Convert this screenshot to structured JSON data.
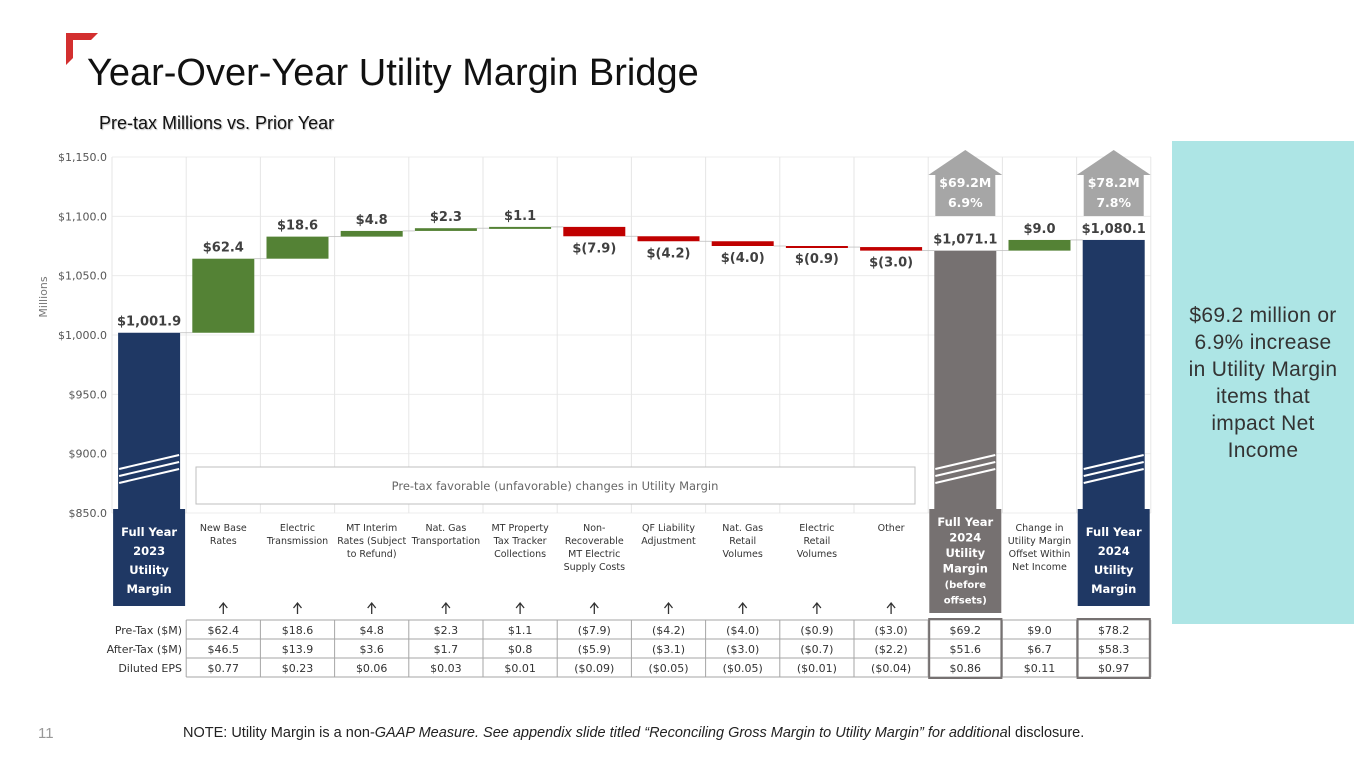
{
  "slide": {
    "title": "Year-Over-Year Utility Margin Bridge",
    "subtitle": "Pre-tax Millions vs. Prior Year",
    "page_number": "11",
    "note_prefix": "NOTE: Utility Margin is a non-",
    "note_italic": "GAAP Measure. See appendix slide titled “Reconciling Gross Margin to Utility Margin” for additiona",
    "note_suffix": "l disclosure.",
    "callout": "$69.2 million or 6.9% increase in Utility Margin items that impact Net Income",
    "accent_color": "#d32f2f"
  },
  "chart_data": {
    "type": "bar",
    "subtype": "waterfall",
    "ylabel": "Millions",
    "ylim": [
      850,
      1150
    ],
    "yticks": [
      "$850.0",
      "$900.0",
      "$950.0",
      "$1,000.0",
      "$1,050.0",
      "$1,100.0",
      "$1,150.0"
    ],
    "ytick_values": [
      850,
      900,
      950,
      1000,
      1050,
      1100,
      1150
    ],
    "band_label": "Pre-tax favorable (unfavorable) changes in Utility Margin",
    "colors": {
      "total": "#1f3864",
      "subtotal": "#767171",
      "increase": "#548235",
      "decrease": "#c00000",
      "badge": "#a6a6a6",
      "callout": "#ade5e5"
    },
    "bars": [
      {
        "category": "Full Year 2023 Utility Margin",
        "kind": "total",
        "start": 0,
        "end": 1001.9,
        "label": "$1,001.9"
      },
      {
        "category": "New Base Rates",
        "kind": "increase",
        "start": 1001.9,
        "end": 1064.3,
        "label": "$62.4"
      },
      {
        "category": "Electric Transmission",
        "kind": "increase",
        "start": 1064.3,
        "end": 1082.9,
        "label": "$18.6"
      },
      {
        "category": "MT Interim Rates (Subject to Refund)",
        "kind": "increase",
        "start": 1082.9,
        "end": 1087.7,
        "label": "$4.8"
      },
      {
        "category": "Nat. Gas Transportation",
        "kind": "increase",
        "start": 1087.7,
        "end": 1090.0,
        "label": "$2.3"
      },
      {
        "category": "MT Property Tax Tracker Collections",
        "kind": "increase",
        "start": 1090.0,
        "end": 1091.1,
        "label": "$1.1"
      },
      {
        "category": "Non-Recoverable MT Electric Supply Costs",
        "kind": "decrease",
        "start": 1091.1,
        "end": 1083.2,
        "label": "$(7.9)"
      },
      {
        "category": "QF Liability Adjustment",
        "kind": "decrease",
        "start": 1083.2,
        "end": 1079.0,
        "label": "$(4.2)"
      },
      {
        "category": "Nat. Gas Retail Volumes",
        "kind": "decrease",
        "start": 1079.0,
        "end": 1075.0,
        "label": "$(4.0)"
      },
      {
        "category": "Electric Retail Volumes",
        "kind": "decrease",
        "start": 1075.0,
        "end": 1074.1,
        "label": "$(0.9)"
      },
      {
        "category": "Other",
        "kind": "decrease",
        "start": 1074.1,
        "end": 1071.1,
        "label": "$(3.0)"
      },
      {
        "category": "Full Year 2024 Utility Margin (before offsets)",
        "kind": "subtotal",
        "start": 0,
        "end": 1071.1,
        "label": "$1,071.1"
      },
      {
        "category": "Change in Utility Margin Offset Within Net Income",
        "kind": "increase",
        "start": 1071.1,
        "end": 1080.1,
        "label": "$9.0"
      },
      {
        "category": "Full Year 2024 Utility Margin",
        "kind": "total",
        "start": 0,
        "end": 1080.1,
        "label": "$1,080.1"
      }
    ],
    "category_lines": [
      [
        "Full Year",
        "2023",
        "Utility",
        "Margin"
      ],
      [
        "New Base",
        "Rates"
      ],
      [
        "Electric",
        "Transmission"
      ],
      [
        "MT Interim",
        "Rates (Subject",
        "to Refund)"
      ],
      [
        "Nat. Gas",
        "Transportation"
      ],
      [
        "MT Property",
        "Tax Tracker",
        "Collections"
      ],
      [
        "Non-",
        "Recoverable",
        "MT Electric",
        "Supply Costs"
      ],
      [
        "QF Liability",
        "Adjustment"
      ],
      [
        "Nat. Gas",
        "Retail",
        "Volumes"
      ],
      [
        "Electric",
        "Retail",
        "Volumes"
      ],
      [
        "Other"
      ],
      [
        "Full Year",
        "2024",
        "Utility",
        "Margin",
        "(before",
        "offsets)"
      ],
      [
        "Change in",
        "Utility Margin",
        "Offset Within",
        "Net Income"
      ],
      [
        "Full Year",
        "2024",
        "Utility",
        "Margin"
      ]
    ],
    "badges": [
      {
        "bar": 11,
        "lines": [
          "$69.2M",
          "6.9%"
        ]
      },
      {
        "bar": 13,
        "lines": [
          "$78.2M",
          "7.8%"
        ]
      }
    ],
    "table": {
      "row_labels": [
        "Pre-Tax ($M)",
        "After-Tax ($M)",
        "Diluted EPS"
      ],
      "rows": [
        [
          "$62.4",
          "$18.6",
          "$4.8",
          "$2.3",
          "$1.1",
          "($7.9)",
          "($4.2)",
          "($4.0)",
          "($0.9)",
          "($3.0)",
          "$69.2",
          "$9.0",
          "$78.2"
        ],
        [
          "$46.5",
          "$13.9",
          "$3.6",
          "$1.7",
          "$0.8",
          "($5.9)",
          "($3.1)",
          "($3.0)",
          "($0.7)",
          "($2.2)",
          "$51.6",
          "$6.7",
          "$58.3"
        ],
        [
          "$0.77",
          "$0.23",
          "$0.06",
          "$0.03",
          "$0.01",
          "($0.09)",
          "($0.05)",
          "($0.05)",
          "($0.01)",
          "($0.04)",
          "$0.86",
          "$0.11",
          "$0.97"
        ]
      ]
    }
  }
}
